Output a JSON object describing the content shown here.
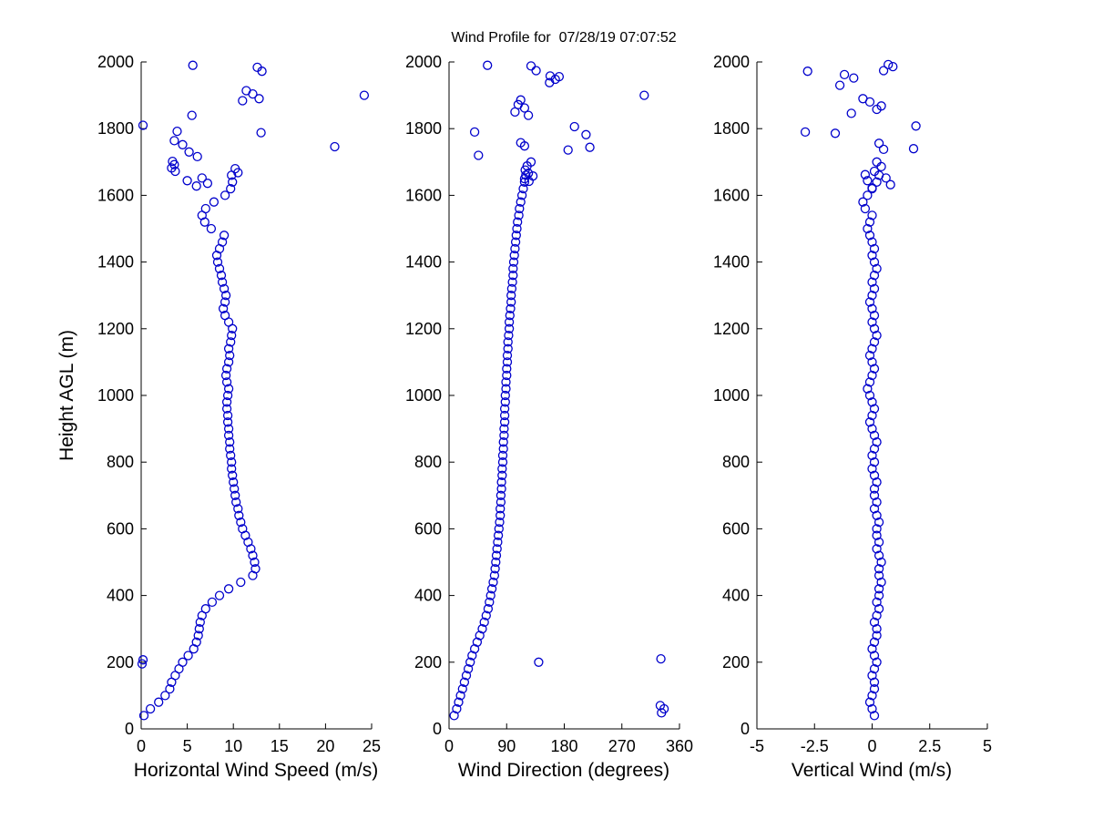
{
  "figure": {
    "title": "Wind Profile for  07/28/19 07:07:52",
    "background": "#ffffff",
    "axis_color": "#000000",
    "marker_color": "#0000cc",
    "ylabel": "Height AGL (m)"
  },
  "chart_data": {
    "type": "scatter",
    "title": "Wind Profile for  07/28/19 07:07:52",
    "marker": {
      "shape": "open-circle",
      "color": "#0000cc"
    },
    "grid": false,
    "legend": null,
    "shared_y": {
      "label": "Height AGL (m)",
      "lim": [
        0,
        2000
      ],
      "ticks": [
        0,
        200,
        400,
        600,
        800,
        1000,
        1200,
        1400,
        1600,
        1800,
        2000
      ]
    },
    "heights": [
      40,
      60,
      80,
      100,
      120,
      140,
      160,
      180,
      200,
      220,
      240,
      260,
      280,
      300,
      320,
      340,
      360,
      380,
      400,
      420,
      440,
      460,
      480,
      500,
      520,
      540,
      560,
      580,
      600,
      620,
      640,
      660,
      680,
      700,
      720,
      740,
      760,
      780,
      800,
      820,
      840,
      860,
      880,
      900,
      920,
      940,
      960,
      980,
      1000,
      1020,
      1040,
      1060,
      1080,
      1100,
      1120,
      1140,
      1160,
      1180,
      1200,
      1220,
      1240,
      1260,
      1280,
      1300,
      1320,
      1340,
      1360,
      1380,
      1400,
      1420,
      1440,
      1460,
      1480,
      1500,
      1520,
      1540,
      1560,
      1580,
      1600,
      1620,
      1640,
      1660
    ],
    "panels": [
      {
        "name": "horizontal-wind-speed",
        "xlabel": "Horizontal Wind Speed (m/s)",
        "xlim": [
          0,
          25
        ],
        "xticks": [
          0,
          5,
          10,
          15,
          20,
          25
        ],
        "values": [
          0.3,
          1.0,
          1.9,
          2.6,
          3.1,
          3.3,
          3.7,
          4.1,
          4.5,
          5.1,
          5.7,
          6.0,
          6.2,
          6.3,
          6.4,
          6.6,
          7.0,
          7.7,
          8.5,
          9.5,
          10.8,
          12.1,
          12.4,
          12.3,
          12.1,
          11.9,
          11.6,
          11.3,
          11.0,
          10.8,
          10.6,
          10.5,
          10.3,
          10.2,
          10.1,
          10.0,
          9.9,
          9.8,
          9.8,
          9.7,
          9.6,
          9.6,
          9.5,
          9.5,
          9.4,
          9.4,
          9.3,
          9.3,
          9.4,
          9.5,
          9.3,
          9.2,
          9.3,
          9.5,
          9.6,
          9.5,
          9.7,
          9.8,
          9.9,
          9.5,
          9.1,
          8.9,
          9.1,
          9.2,
          9.0,
          8.8,
          8.7,
          8.5,
          8.3,
          8.2,
          8.5,
          8.8,
          9.0,
          7.6,
          6.9,
          6.6,
          7.0,
          7.9,
          9.1,
          9.7,
          9.9,
          9.8
        ],
        "extra_points": [
          [
            0.1,
            195
          ],
          [
            0.2,
            207
          ],
          [
            0.2,
            1810
          ],
          [
            5.6,
            1990
          ],
          [
            12.6,
            1984
          ],
          [
            13.1,
            1972
          ],
          [
            11.4,
            1914
          ],
          [
            12.1,
            1904
          ],
          [
            24.2,
            1900
          ],
          [
            12.8,
            1890
          ],
          [
            11.0,
            1884
          ],
          [
            5.5,
            1840
          ],
          [
            3.9,
            1792
          ],
          [
            13.0,
            1788
          ],
          [
            3.6,
            1764
          ],
          [
            4.5,
            1752
          ],
          [
            21.0,
            1746
          ],
          [
            5.2,
            1730
          ],
          [
            6.1,
            1716
          ],
          [
            3.4,
            1702
          ],
          [
            3.6,
            1692
          ],
          [
            3.3,
            1682
          ],
          [
            3.7,
            1672
          ],
          [
            10.2,
            1680
          ],
          [
            10.5,
            1668
          ],
          [
            6.6,
            1652
          ],
          [
            5.0,
            1644
          ],
          [
            7.2,
            1636
          ],
          [
            6.0,
            1628
          ]
        ]
      },
      {
        "name": "wind-direction",
        "xlabel": "Wind Direction (degrees)",
        "xlim": [
          0,
          360
        ],
        "xticks": [
          0,
          90,
          180,
          270,
          360
        ],
        "values": [
          8,
          12,
          15,
          18,
          21,
          24,
          27,
          30,
          33,
          36,
          40,
          44,
          48,
          52,
          55,
          58,
          61,
          63,
          65,
          67,
          69,
          71,
          72,
          73,
          74,
          75,
          76,
          77,
          78,
          79,
          80,
          80,
          81,
          81,
          82,
          82,
          83,
          83,
          84,
          84,
          85,
          85,
          86,
          86,
          87,
          87,
          87,
          88,
          88,
          89,
          89,
          90,
          90,
          91,
          91,
          92,
          92,
          93,
          94,
          94,
          95,
          96,
          97,
          97,
          98,
          99,
          100,
          100,
          101,
          102,
          103,
          104,
          105,
          106,
          107,
          109,
          110,
          112,
          114,
          116,
          118,
          120
        ],
        "extra_points": [
          [
            332,
            48
          ],
          [
            336,
            60
          ],
          [
            330,
            70
          ],
          [
            140,
            200
          ],
          [
            331,
            210
          ],
          [
            60,
            1990
          ],
          [
            128,
            1988
          ],
          [
            136,
            1974
          ],
          [
            158,
            1958
          ],
          [
            172,
            1956
          ],
          [
            166,
            1948
          ],
          [
            157,
            1938
          ],
          [
            305,
            1900
          ],
          [
            112,
            1886
          ],
          [
            108,
            1872
          ],
          [
            118,
            1862
          ],
          [
            103,
            1850
          ],
          [
            124,
            1840
          ],
          [
            196,
            1806
          ],
          [
            40,
            1790
          ],
          [
            214,
            1782
          ],
          [
            112,
            1758
          ],
          [
            118,
            1748
          ],
          [
            220,
            1744
          ],
          [
            186,
            1736
          ],
          [
            46,
            1720
          ],
          [
            128,
            1700
          ],
          [
            122,
            1688
          ],
          [
            119,
            1676
          ],
          [
            124,
            1666
          ],
          [
            131,
            1658
          ],
          [
            118,
            1650
          ],
          [
            125,
            1642
          ]
        ]
      },
      {
        "name": "vertical-wind",
        "xlabel": "Vertical Wind (m/s)",
        "xlim": [
          -5,
          5
        ],
        "xticks": [
          -5,
          -2.5,
          0,
          2.5,
          5
        ],
        "values": [
          0.1,
          0.0,
          -0.1,
          0.0,
          0.1,
          0.1,
          0.0,
          0.1,
          0.2,
          0.1,
          0.0,
          0.1,
          0.2,
          0.2,
          0.1,
          0.2,
          0.3,
          0.2,
          0.3,
          0.3,
          0.4,
          0.3,
          0.3,
          0.4,
          0.3,
          0.2,
          0.3,
          0.2,
          0.2,
          0.3,
          0.2,
          0.1,
          0.2,
          0.1,
          0.1,
          0.2,
          0.1,
          0.0,
          0.1,
          0.0,
          0.1,
          0.2,
          0.1,
          0.0,
          -0.1,
          0.0,
          0.1,
          0.0,
          -0.1,
          -0.2,
          -0.1,
          0.0,
          0.1,
          0.0,
          -0.1,
          0.0,
          0.1,
          0.2,
          0.1,
          0.0,
          0.1,
          0.0,
          -0.1,
          0.0,
          0.1,
          0.0,
          0.1,
          0.2,
          0.1,
          0.0,
          0.1,
          0.0,
          -0.1,
          -0.2,
          -0.1,
          0.0,
          -0.3,
          -0.4,
          -0.2,
          0.0,
          0.2,
          0.3
        ],
        "extra_points": [
          [
            0.7,
            1992
          ],
          [
            0.9,
            1986
          ],
          [
            0.5,
            1974
          ],
          [
            -2.8,
            1972
          ],
          [
            -1.2,
            1962
          ],
          [
            -0.8,
            1952
          ],
          [
            -1.4,
            1930
          ],
          [
            -0.4,
            1890
          ],
          [
            -0.1,
            1880
          ],
          [
            0.4,
            1868
          ],
          [
            0.2,
            1858
          ],
          [
            -0.9,
            1846
          ],
          [
            1.9,
            1808
          ],
          [
            -2.9,
            1790
          ],
          [
            -1.6,
            1786
          ],
          [
            0.3,
            1756
          ],
          [
            1.8,
            1740
          ],
          [
            0.5,
            1738
          ],
          [
            0.2,
            1700
          ],
          [
            0.4,
            1686
          ],
          [
            0.1,
            1672
          ],
          [
            -0.3,
            1662
          ],
          [
            0.6,
            1652
          ],
          [
            -0.2,
            1644
          ],
          [
            0.8,
            1632
          ],
          [
            0.0,
            1622
          ]
        ]
      }
    ]
  }
}
